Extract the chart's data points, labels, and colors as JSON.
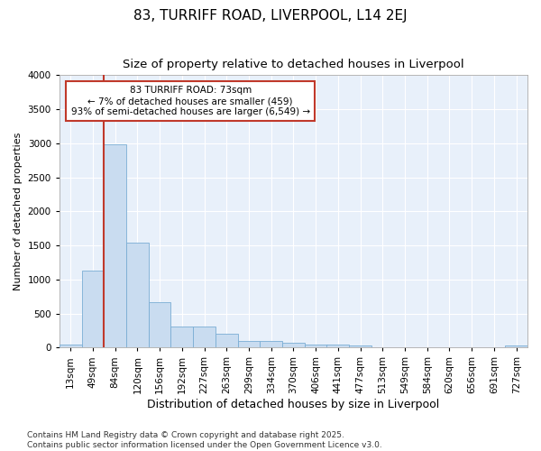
{
  "title": "83, TURRIFF ROAD, LIVERPOOL, L14 2EJ",
  "subtitle": "Size of property relative to detached houses in Liverpool",
  "xlabel": "Distribution of detached houses by size in Liverpool",
  "ylabel": "Number of detached properties",
  "categories": [
    "13sqm",
    "49sqm",
    "84sqm",
    "120sqm",
    "156sqm",
    "192sqm",
    "227sqm",
    "263sqm",
    "299sqm",
    "334sqm",
    "370sqm",
    "406sqm",
    "441sqm",
    "477sqm",
    "513sqm",
    "549sqm",
    "584sqm",
    "620sqm",
    "656sqm",
    "691sqm",
    "727sqm"
  ],
  "values": [
    50,
    1130,
    2980,
    1540,
    670,
    315,
    315,
    200,
    100,
    100,
    75,
    50,
    50,
    30,
    0,
    0,
    0,
    0,
    0,
    0,
    30
  ],
  "bar_color": "#c9dcf0",
  "bar_edge_color": "#7aadd4",
  "vline_color": "#c0392b",
  "annotation_text": "83 TURRIFF ROAD: 73sqm\n← 7% of detached houses are smaller (459)\n93% of semi-detached houses are larger (6,549) →",
  "annotation_box_color": "#ffffff",
  "annotation_box_edge": "#c0392b",
  "ylim": [
    0,
    4000
  ],
  "yticks": [
    0,
    500,
    1000,
    1500,
    2000,
    2500,
    3000,
    3500,
    4000
  ],
  "bg_color": "#e8f0fa",
  "fig_color": "#ffffff",
  "footer1": "Contains HM Land Registry data © Crown copyright and database right 2025.",
  "footer2": "Contains public sector information licensed under the Open Government Licence v3.0.",
  "title_fontsize": 11,
  "subtitle_fontsize": 9.5,
  "xlabel_fontsize": 9,
  "ylabel_fontsize": 8,
  "tick_fontsize": 7.5,
  "footer_fontsize": 6.5
}
